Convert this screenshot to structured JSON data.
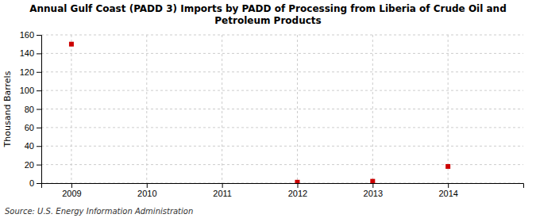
{
  "chart_data": {
    "type": "scatter",
    "title": "Annual Gulf Coast (PADD 3) Imports by PADD of Processing from Liberia of Crude Oil and\nPetroleum Products",
    "ylabel": "Thousand Barrels",
    "annotations": [
      "Source: U.S. Energy Information Administration"
    ],
    "x": [
      2009,
      2012,
      2013,
      2014
    ],
    "values": [
      150,
      1,
      2,
      18
    ],
    "color": "#cc0000",
    "marker": "square",
    "xlim": [
      2008.6,
      2015.0
    ],
    "xticks": [
      2009,
      2010,
      2011,
      2012,
      2013,
      2014
    ],
    "ylim": [
      0,
      160
    ],
    "yticks": [
      0,
      20,
      40,
      60,
      80,
      100,
      120,
      140,
      160
    ],
    "grid": true
  }
}
